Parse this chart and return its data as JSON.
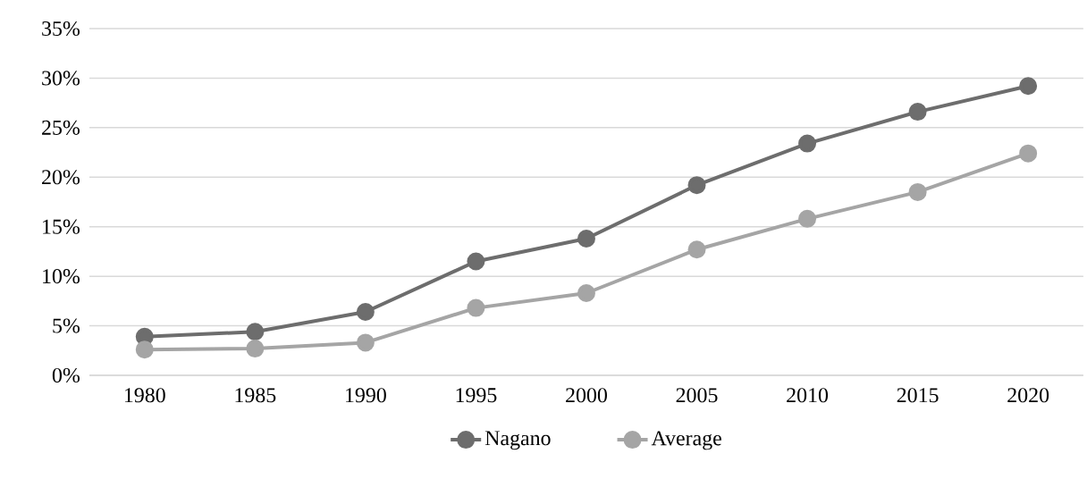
{
  "chart_data": {
    "type": "line",
    "categories": [
      "1980",
      "1985",
      "1990",
      "1995",
      "2000",
      "2005",
      "2010",
      "2015",
      "2020"
    ],
    "series": [
      {
        "name": "Nagano",
        "color": "#6d6d6d",
        "values": [
          3.9,
          4.4,
          6.4,
          11.5,
          13.8,
          19.2,
          23.4,
          26.6,
          29.2
        ]
      },
      {
        "name": "Average",
        "color": "#a5a5a5",
        "values": [
          2.6,
          2.7,
          3.3,
          6.8,
          8.3,
          12.7,
          15.8,
          18.5,
          22.4
        ]
      }
    ],
    "ylim": [
      0,
      35
    ],
    "yticks": [
      {
        "value": 0,
        "label": "0%"
      },
      {
        "value": 5,
        "label": "5%"
      },
      {
        "value": 10,
        "label": "10%"
      },
      {
        "value": 15,
        "label": "15%"
      },
      {
        "value": 20,
        "label": "20%"
      },
      {
        "value": 25,
        "label": "25%"
      },
      {
        "value": 30,
        "label": "30%"
      },
      {
        "value": 35,
        "label": "35%"
      }
    ],
    "grid": "y",
    "legend": "bottom",
    "marker": "circle",
    "line_style": "solid"
  }
}
